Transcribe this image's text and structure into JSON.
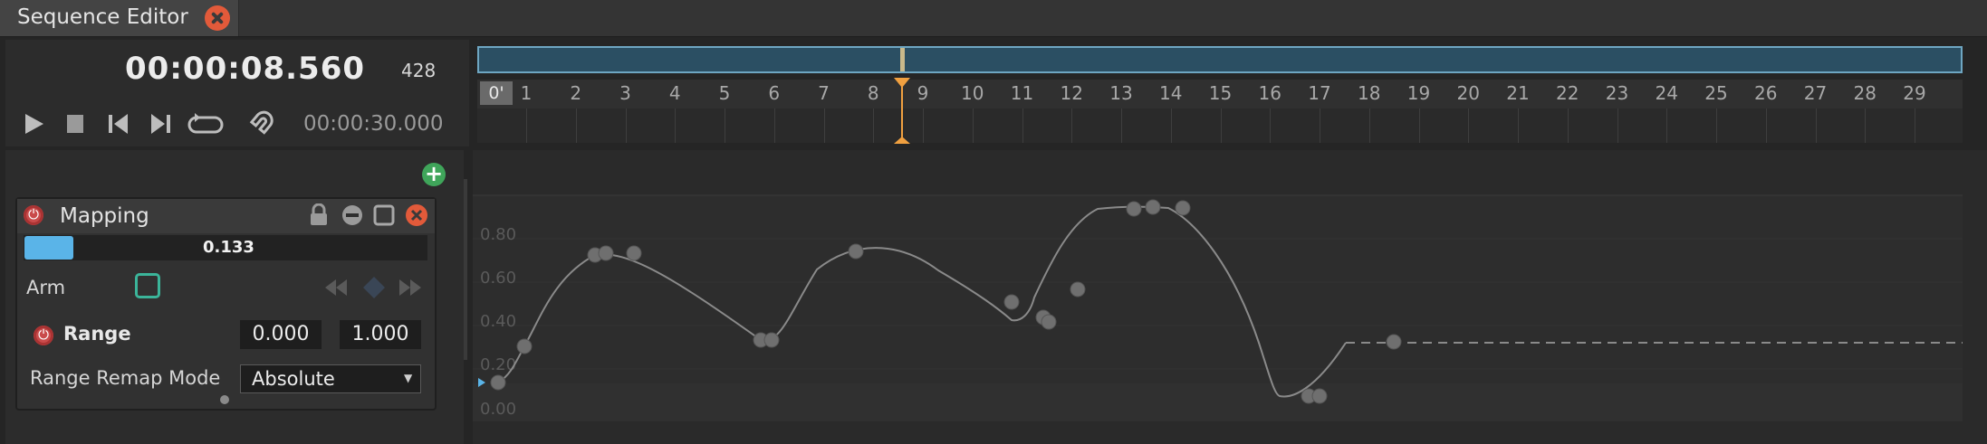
{
  "tab": {
    "title": "Sequence Editor"
  },
  "transport": {
    "current_time": "00:00:08.560",
    "current_frame": "428",
    "total_time": "00:00:30.000"
  },
  "ruler": {
    "zero_label": "0'",
    "ticks": [
      "1",
      "2",
      "3",
      "4",
      "5",
      "6",
      "7",
      "8",
      "9",
      "10",
      "11",
      "12",
      "13",
      "14",
      "15",
      "16",
      "17",
      "18",
      "19",
      "20",
      "21",
      "22",
      "23",
      "24",
      "25",
      "26",
      "27",
      "28",
      "29"
    ],
    "playhead_seconds": 8.56
  },
  "layer": {
    "title": "Mapping",
    "value_label": "0.133",
    "value": 0.133,
    "arm_label": "Arm",
    "range_label": "Range",
    "range_min": "0.000",
    "range_max": "1.000",
    "remap_label": "Range Remap Mode",
    "remap_value": "Absolute"
  },
  "curve": {
    "y_labels": [
      "0.80",
      "0.60",
      "0.40",
      "0.20",
      "0.00"
    ]
  },
  "colors": {
    "accent_blue": "#5ab4e8",
    "playhead": "#f0a040",
    "close_red": "#e25a3a",
    "power_red": "#c94b4b",
    "add_green": "#3fa55a",
    "arm_teal": "#3bb59a"
  },
  "icons": {
    "play": "play-icon",
    "stop": "stop-icon",
    "prev": "skip-back-icon",
    "next": "skip-forward-icon",
    "loop": "loop-icon",
    "snap": "magnet-icon",
    "lock": "lock-icon",
    "minimize": "minus-circle-icon",
    "expand": "square-icon",
    "close": "close-icon"
  }
}
